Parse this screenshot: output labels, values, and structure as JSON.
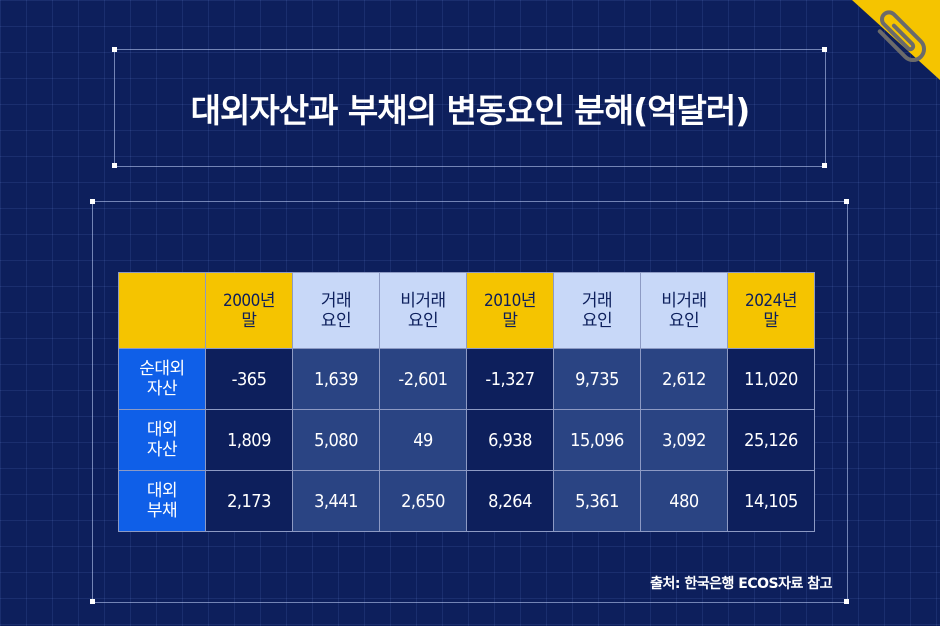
{
  "title": "대외자산과 부채의 변동요인 분해(억달러)",
  "source": "출처: 한국은행 ECOS자료 참고",
  "colors": {
    "background": "#0d1f5c",
    "accent_yellow": "#f5c400",
    "row_header_blue": "#0f5fe8",
    "factor_header": "#c8d8f8"
  },
  "icons": {
    "corner": "paperclip-icon"
  },
  "chart_data": {
    "type": "table",
    "title": "대외자산과 부채의 변동요인 분해(억달러)",
    "columns": [
      "2000년 말",
      "거래 요인",
      "비거래 요인",
      "2010년 말",
      "거래 요인",
      "비거래 요인",
      "2024년 말"
    ],
    "rows": [
      {
        "label": "순대외 자산",
        "values": [
          "-365",
          "1,639",
          "-2,601",
          "-1,327",
          "9,735",
          "2,612",
          "11,020"
        ]
      },
      {
        "label": "대외 자산",
        "values": [
          "1,809",
          "5,080",
          "49",
          "6,938",
          "15,096",
          "3,092",
          "25,126"
        ]
      },
      {
        "label": "대외 부채",
        "values": [
          "2,173",
          "3,441",
          "2,650",
          "8,264",
          "5,361",
          "480",
          "14,105"
        ]
      }
    ]
  }
}
